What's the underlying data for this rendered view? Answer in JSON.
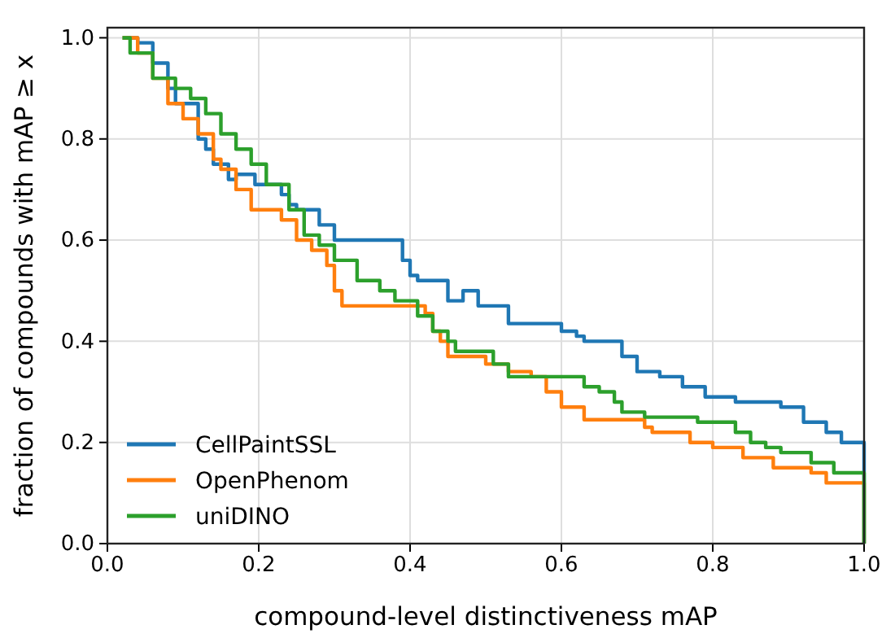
{
  "chart_data": {
    "type": "step",
    "xlabel": "compound-level distinctiveness mAP",
    "ylabel": "fraction of compounds with mAP ≥ x",
    "xlim": [
      0,
      1
    ],
    "ylim": [
      0,
      1.02
    ],
    "xticks": [
      {
        "value": 0,
        "label": "0.0"
      },
      {
        "value": 0.2,
        "label": "0.2"
      },
      {
        "value": 0.4,
        "label": "0.4"
      },
      {
        "value": 0.6,
        "label": "0.6"
      },
      {
        "value": 0.8,
        "label": "0.8"
      },
      {
        "value": 1,
        "label": "1.0"
      }
    ],
    "yticks": [
      {
        "value": 0,
        "label": "0.0"
      },
      {
        "value": 0.2,
        "label": "0.2"
      },
      {
        "value": 0.4,
        "label": "0.4"
      },
      {
        "value": 0.6,
        "label": "0.6"
      },
      {
        "value": 0.8,
        "label": "0.8"
      },
      {
        "value": 1,
        "label": "1.0"
      }
    ],
    "grid": true,
    "legend": "bottom left",
    "line_style": "solid",
    "marker": "none",
    "series": [
      {
        "name": "CellPaintSSL",
        "color": "#1f77b4",
        "x": [
          0.02,
          0.04,
          0.06,
          0.08,
          0.09,
          0.12,
          0.13,
          0.14,
          0.16,
          0.17,
          0.195,
          0.23,
          0.24,
          0.25,
          0.28,
          0.3,
          0.32,
          0.39,
          0.4,
          0.41,
          0.45,
          0.47,
          0.49,
          0.53,
          0.6,
          0.62,
          0.63,
          0.68,
          0.7,
          0.73,
          0.76,
          0.79,
          0.83,
          0.89,
          0.92,
          0.95,
          0.97,
          1.0
        ],
        "values": [
          1.0,
          0.99,
          0.95,
          0.9,
          0.87,
          0.8,
          0.78,
          0.75,
          0.72,
          0.73,
          0.71,
          0.69,
          0.67,
          0.66,
          0.63,
          0.6,
          0.6,
          0.56,
          0.53,
          0.52,
          0.48,
          0.5,
          0.47,
          0.435,
          0.42,
          0.41,
          0.4,
          0.37,
          0.34,
          0.33,
          0.31,
          0.29,
          0.28,
          0.27,
          0.24,
          0.22,
          0.2,
          0
        ]
      },
      {
        "name": "OpenPhenom",
        "color": "#ff7f0e",
        "x": [
          0.02,
          0.04,
          0.06,
          0.08,
          0.1,
          0.12,
          0.14,
          0.15,
          0.17,
          0.19,
          0.23,
          0.25,
          0.27,
          0.29,
          0.3,
          0.31,
          0.42,
          0.43,
          0.44,
          0.45,
          0.5,
          0.53,
          0.56,
          0.58,
          0.6,
          0.63,
          0.71,
          0.72,
          0.77,
          0.8,
          0.84,
          0.88,
          0.93,
          0.95,
          1.0
        ],
        "values": [
          1.0,
          0.97,
          0.92,
          0.87,
          0.84,
          0.81,
          0.76,
          0.74,
          0.7,
          0.66,
          0.64,
          0.6,
          0.58,
          0.55,
          0.5,
          0.47,
          0.455,
          0.42,
          0.4,
          0.37,
          0.355,
          0.34,
          0.33,
          0.3,
          0.27,
          0.245,
          0.23,
          0.22,
          0.2,
          0.19,
          0.17,
          0.15,
          0.14,
          0.12,
          0
        ]
      },
      {
        "name": "uniDINO",
        "color": "#2ca02c",
        "x": [
          0.02,
          0.03,
          0.06,
          0.09,
          0.11,
          0.13,
          0.15,
          0.17,
          0.19,
          0.21,
          0.24,
          0.26,
          0.28,
          0.3,
          0.33,
          0.36,
          0.38,
          0.41,
          0.43,
          0.45,
          0.46,
          0.51,
          0.53,
          0.6,
          0.63,
          0.65,
          0.67,
          0.68,
          0.71,
          0.78,
          0.83,
          0.85,
          0.87,
          0.89,
          0.93,
          0.96,
          1.0
        ],
        "values": [
          1.0,
          0.97,
          0.92,
          0.9,
          0.88,
          0.85,
          0.81,
          0.78,
          0.75,
          0.71,
          0.66,
          0.61,
          0.59,
          0.56,
          0.52,
          0.5,
          0.48,
          0.45,
          0.42,
          0.4,
          0.38,
          0.355,
          0.33,
          0.33,
          0.31,
          0.3,
          0.28,
          0.26,
          0.25,
          0.24,
          0.22,
          0.2,
          0.19,
          0.18,
          0.16,
          0.14,
          0
        ]
      }
    ]
  }
}
